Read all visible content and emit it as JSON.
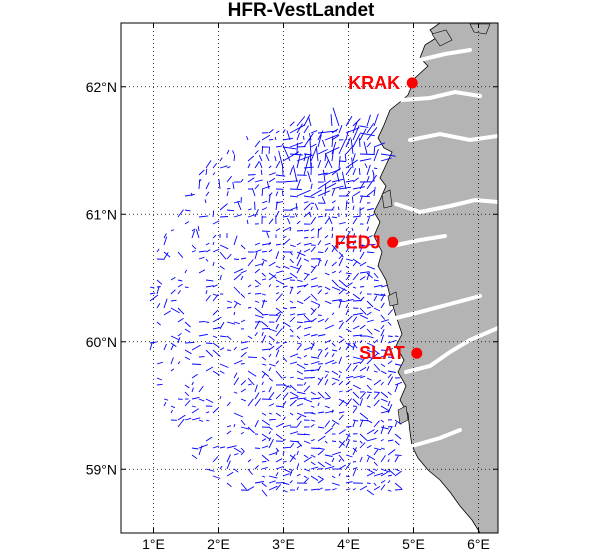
{
  "map": {
    "title": "HFR-VestLandet",
    "lon_range": [
      0.5,
      6.3
    ],
    "lat_range": [
      58.5,
      62.5
    ],
    "x_ticks": [
      {
        "value": 1,
        "label": "1°E"
      },
      {
        "value": 2,
        "label": "2°E"
      },
      {
        "value": 3,
        "label": "3°E"
      },
      {
        "value": 4,
        "label": "4°E"
      },
      {
        "value": 5,
        "label": "5°E"
      },
      {
        "value": 6,
        "label": "6°E"
      }
    ],
    "y_ticks": [
      {
        "value": 59,
        "label": "59°N"
      },
      {
        "value": 60,
        "label": "60°N"
      },
      {
        "value": 61,
        "label": "61°N"
      },
      {
        "value": 62,
        "label": "62°N"
      }
    ],
    "grid": "dotted",
    "colors": {
      "land": "#b4b4b4",
      "coast": "#000000",
      "vectors": "#0000ff",
      "stations": "#ff0000",
      "grid": "#000000"
    },
    "stations": [
      {
        "name": "KRAK",
        "lon": 4.98,
        "lat": 62.03
      },
      {
        "name": "FEDJ",
        "lon": 4.68,
        "lat": 60.78
      },
      {
        "name": "SLAT",
        "lon": 5.05,
        "lat": 59.91
      }
    ]
  }
}
